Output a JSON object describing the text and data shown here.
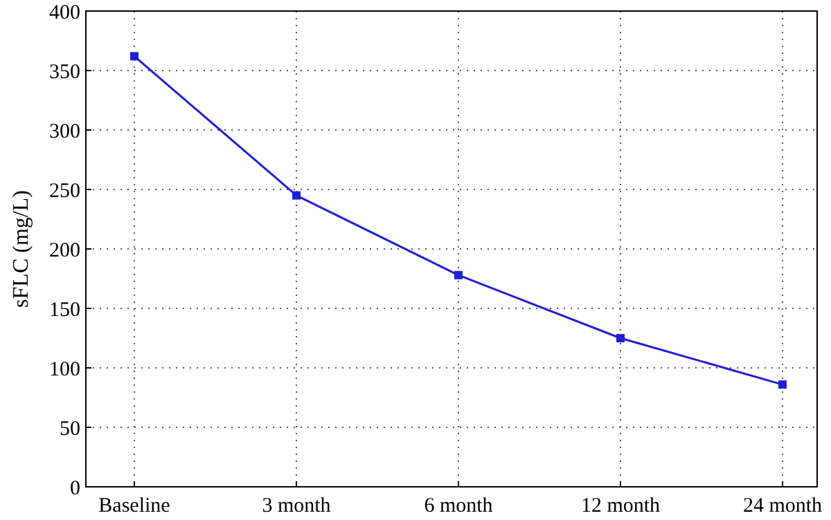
{
  "chart_data": {
    "type": "line",
    "ylabel": "sFLC (mg/L)",
    "categories": [
      "Baseline",
      "3 month",
      "6 month",
      "12 month",
      "24 month"
    ],
    "series": [
      {
        "color": "#1f1fd6",
        "values": [
          362,
          245,
          178,
          125,
          86
        ]
      }
    ],
    "ylim": [
      0,
      400
    ],
    "yticks": [
      0,
      50,
      100,
      150,
      200,
      250,
      300,
      350,
      400
    ],
    "grid": true,
    "marker": "square",
    "line_style": "solid"
  }
}
